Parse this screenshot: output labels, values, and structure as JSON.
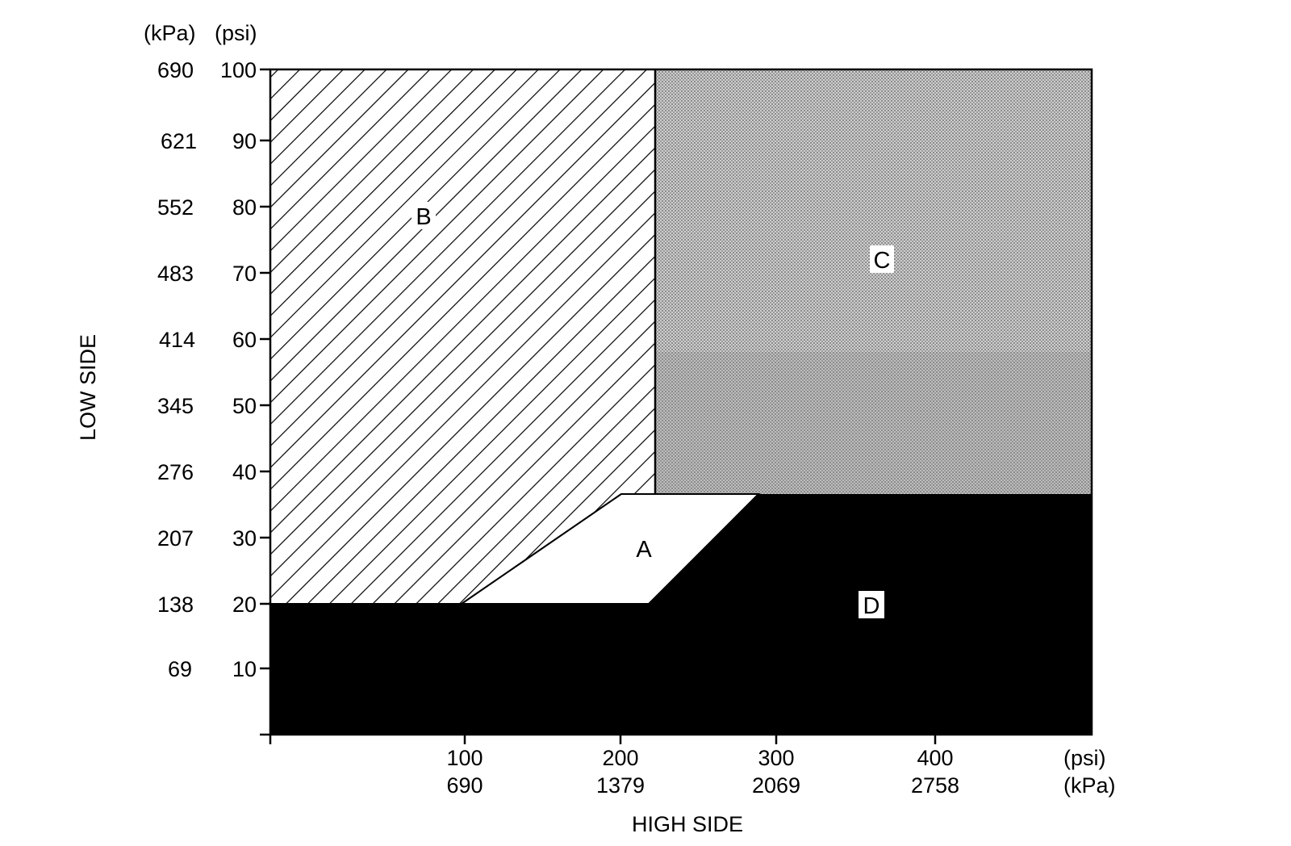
{
  "y_axis": {
    "title": "LOW SIDE",
    "unit_kpa": "(kPa)",
    "unit_psi": "(psi)",
    "psi_ticks": [
      "10",
      "20",
      "30",
      "40",
      "50",
      "60",
      "70",
      "80",
      "90",
      "100"
    ],
    "kpa_ticks": [
      "69",
      "138",
      "207",
      "276",
      "345",
      "414",
      "483",
      "552",
      "621",
      "690"
    ],
    "range_psi": [
      0,
      100
    ]
  },
  "x_axis": {
    "title": "HIGH SIDE",
    "unit_psi": "(psi)",
    "unit_kpa": "(kPa)",
    "psi_ticks": [
      "100",
      "200",
      "300",
      "400"
    ],
    "kpa_ticks": [
      "690",
      "1379",
      "2069",
      "2758"
    ],
    "range_psi": [
      0,
      530
    ]
  },
  "regions": {
    "A": {
      "label": "A",
      "fill": "#ffffff"
    },
    "B": {
      "label": "B",
      "fill": "hatch"
    },
    "C": {
      "label": "C",
      "fill": "#bdbdbd"
    },
    "D": {
      "label": "D",
      "fill": "#000000"
    }
  }
}
